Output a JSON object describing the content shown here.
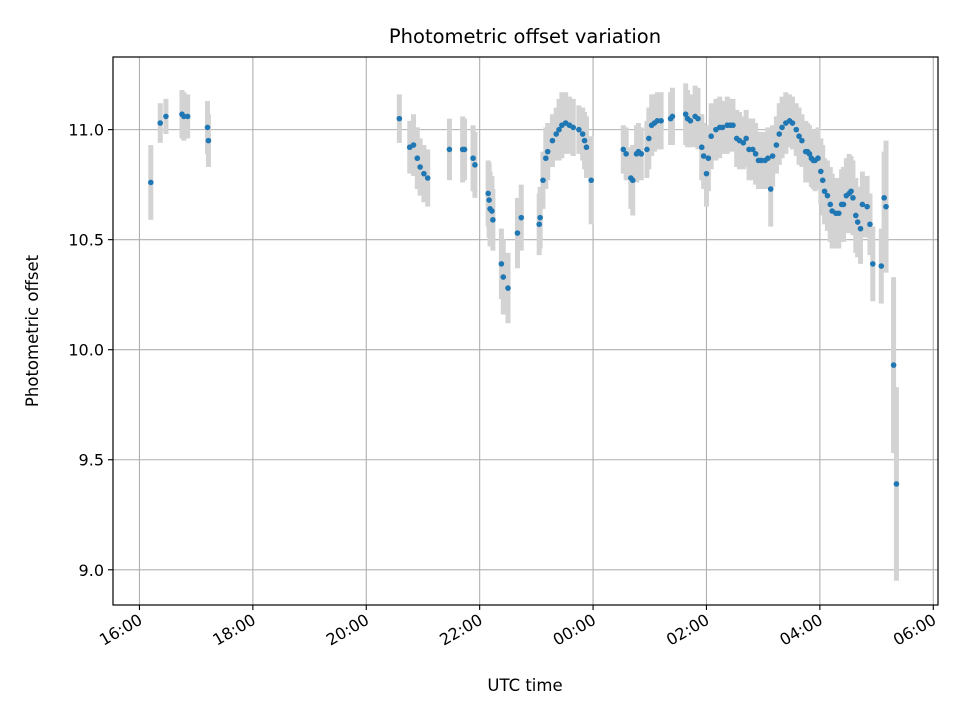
{
  "chart_data": {
    "type": "scatter",
    "title": "Photometric offset variation",
    "xlabel": "UTC time",
    "ylabel": "Photometric offset",
    "x_unit": "UTC clock time (HH:MM), Jan 1 to Jan 2",
    "x_ticks": [
      "16:00",
      "18:00",
      "20:00",
      "22:00",
      "00:00",
      "02:00",
      "04:00",
      "06:00"
    ],
    "y_ticks": [
      "9.0",
      "9.5",
      "10.0",
      "10.5",
      "11.0"
    ],
    "xlim": [
      "15:32",
      "06:05"
    ],
    "ylim": [
      8.84,
      11.33
    ],
    "grid": true,
    "point_color": "#1f77b4",
    "errorbar_color": "#d3d3d3",
    "series": [
      {
        "x": [
          "16:12",
          "16:22",
          "16:28",
          "16:45",
          "16:47",
          "16:51",
          "17:12",
          "17:13",
          "20:35",
          "20:46",
          "20:50",
          "20:54",
          "20:57",
          "21:01",
          "21:05",
          "21:28",
          "21:42",
          "21:44",
          "21:53",
          "21:55",
          "22:09",
          "22:10",
          "22:11",
          "22:13",
          "22:14",
          "22:23",
          "22:25",
          "22:30",
          "22:40",
          "22:44",
          "23:03",
          "23:04",
          "23:07",
          "23:10",
          "23:12",
          "23:17",
          "23:21",
          "23:24",
          "23:27",
          "23:31",
          "23:35",
          "23:39",
          "23:45",
          "23:49",
          "23:51",
          "23:53",
          "23:58",
          "00:32",
          "00:35",
          "00:40",
          "00:42",
          "00:46",
          "00:48",
          "00:51",
          "00:57",
          "00:59",
          "01:02",
          "01:05",
          "01:08",
          "01:12",
          "01:22",
          "01:24",
          "01:38",
          "01:40",
          "01:43",
          "01:48",
          "01:51",
          "01:55",
          "01:57",
          "02:00",
          "02:02",
          "02:05",
          "02:10",
          "02:14",
          "02:17",
          "02:22",
          "02:25",
          "02:28",
          "02:32",
          "02:35",
          "02:39",
          "02:42",
          "02:45",
          "02:49",
          "02:52",
          "02:55",
          "02:58",
          "03:02",
          "03:05",
          "03:08",
          "03:10",
          "03:14",
          "03:17",
          "03:20",
          "03:24",
          "03:28",
          "03:31",
          "03:35",
          "03:38",
          "03:41",
          "03:45",
          "03:47",
          "03:49",
          "03:51",
          "03:53",
          "03:55",
          "03:58",
          "04:01",
          "04:03",
          "04:05",
          "04:08",
          "04:11",
          "04:13",
          "04:17",
          "04:20",
          "04:23",
          "04:25",
          "04:28",
          "04:31",
          "04:33",
          "04:35",
          "04:38",
          "04:40",
          "04:43",
          "04:45",
          "04:50",
          "04:53",
          "04:56",
          "05:05",
          "05:08",
          "05:10",
          "05:18",
          "05:21"
        ],
        "y": [
          10.76,
          11.03,
          11.06,
          11.07,
          11.06,
          11.06,
          11.01,
          10.95,
          11.05,
          10.92,
          10.93,
          10.87,
          10.83,
          10.8,
          10.78,
          10.91,
          10.91,
          10.91,
          10.87,
          10.84,
          10.71,
          10.68,
          10.64,
          10.63,
          10.59,
          10.39,
          10.33,
          10.28,
          10.53,
          10.6,
          10.57,
          10.6,
          10.77,
          10.87,
          10.9,
          10.95,
          10.98,
          11.0,
          11.02,
          11.03,
          11.02,
          11.01,
          11.0,
          10.98,
          10.95,
          10.92,
          10.77,
          10.91,
          10.89,
          10.78,
          10.77,
          10.89,
          10.9,
          10.89,
          10.91,
          10.96,
          11.02,
          11.03,
          11.04,
          11.04,
          11.05,
          11.06,
          11.07,
          11.05,
          11.04,
          11.06,
          11.05,
          10.92,
          10.88,
          10.8,
          10.87,
          10.97,
          11.0,
          11.01,
          11.01,
          11.02,
          11.02,
          11.02,
          10.96,
          10.95,
          10.94,
          10.96,
          10.91,
          10.91,
          10.89,
          10.86,
          10.86,
          10.86,
          10.87,
          10.73,
          10.88,
          10.93,
          10.98,
          11.01,
          11.03,
          11.04,
          11.03,
          11.0,
          10.97,
          10.95,
          10.9,
          10.9,
          10.89,
          10.87,
          10.86,
          10.86,
          10.87,
          10.81,
          10.77,
          10.72,
          10.7,
          10.66,
          10.63,
          10.62,
          10.62,
          10.66,
          10.66,
          10.7,
          10.71,
          10.72,
          10.69,
          10.61,
          10.58,
          10.55,
          10.66,
          10.65,
          10.57,
          10.39,
          10.38,
          10.69,
          10.65,
          9.93,
          9.39
        ],
        "yerr": [
          0.17,
          0.09,
          0.08,
          0.11,
          0.11,
          0.1,
          0.12,
          0.12,
          0.11,
          0.12,
          0.14,
          0.14,
          0.13,
          0.13,
          0.13,
          0.14,
          0.15,
          0.14,
          0.15,
          0.15,
          0.15,
          0.17,
          0.17,
          0.16,
          0.14,
          0.16,
          0.17,
          0.16,
          0.16,
          0.15,
          0.14,
          0.14,
          0.13,
          0.14,
          0.13,
          0.12,
          0.12,
          0.14,
          0.15,
          0.14,
          0.13,
          0.13,
          0.11,
          0.12,
          0.13,
          0.14,
          0.2,
          0.11,
          0.12,
          0.14,
          0.16,
          0.13,
          0.13,
          0.12,
          0.13,
          0.14,
          0.14,
          0.13,
          0.13,
          0.13,
          0.12,
          0.13,
          0.14,
          0.13,
          0.12,
          0.14,
          0.14,
          0.15,
          0.15,
          0.15,
          0.15,
          0.15,
          0.14,
          0.14,
          0.12,
          0.13,
          0.12,
          0.12,
          0.13,
          0.13,
          0.12,
          0.13,
          0.14,
          0.14,
          0.14,
          0.13,
          0.13,
          0.13,
          0.14,
          0.17,
          0.14,
          0.13,
          0.14,
          0.14,
          0.14,
          0.12,
          0.12,
          0.12,
          0.13,
          0.12,
          0.14,
          0.13,
          0.13,
          0.13,
          0.13,
          0.14,
          0.14,
          0.15,
          0.16,
          0.15,
          0.16,
          0.17,
          0.17,
          0.16,
          0.16,
          0.16,
          0.17,
          0.17,
          0.18,
          0.16,
          0.17,
          0.17,
          0.16,
          0.16,
          0.15,
          0.14,
          0.14,
          0.17,
          0.17,
          0.21,
          0.3,
          0.4,
          0.44
        ]
      }
    ]
  }
}
